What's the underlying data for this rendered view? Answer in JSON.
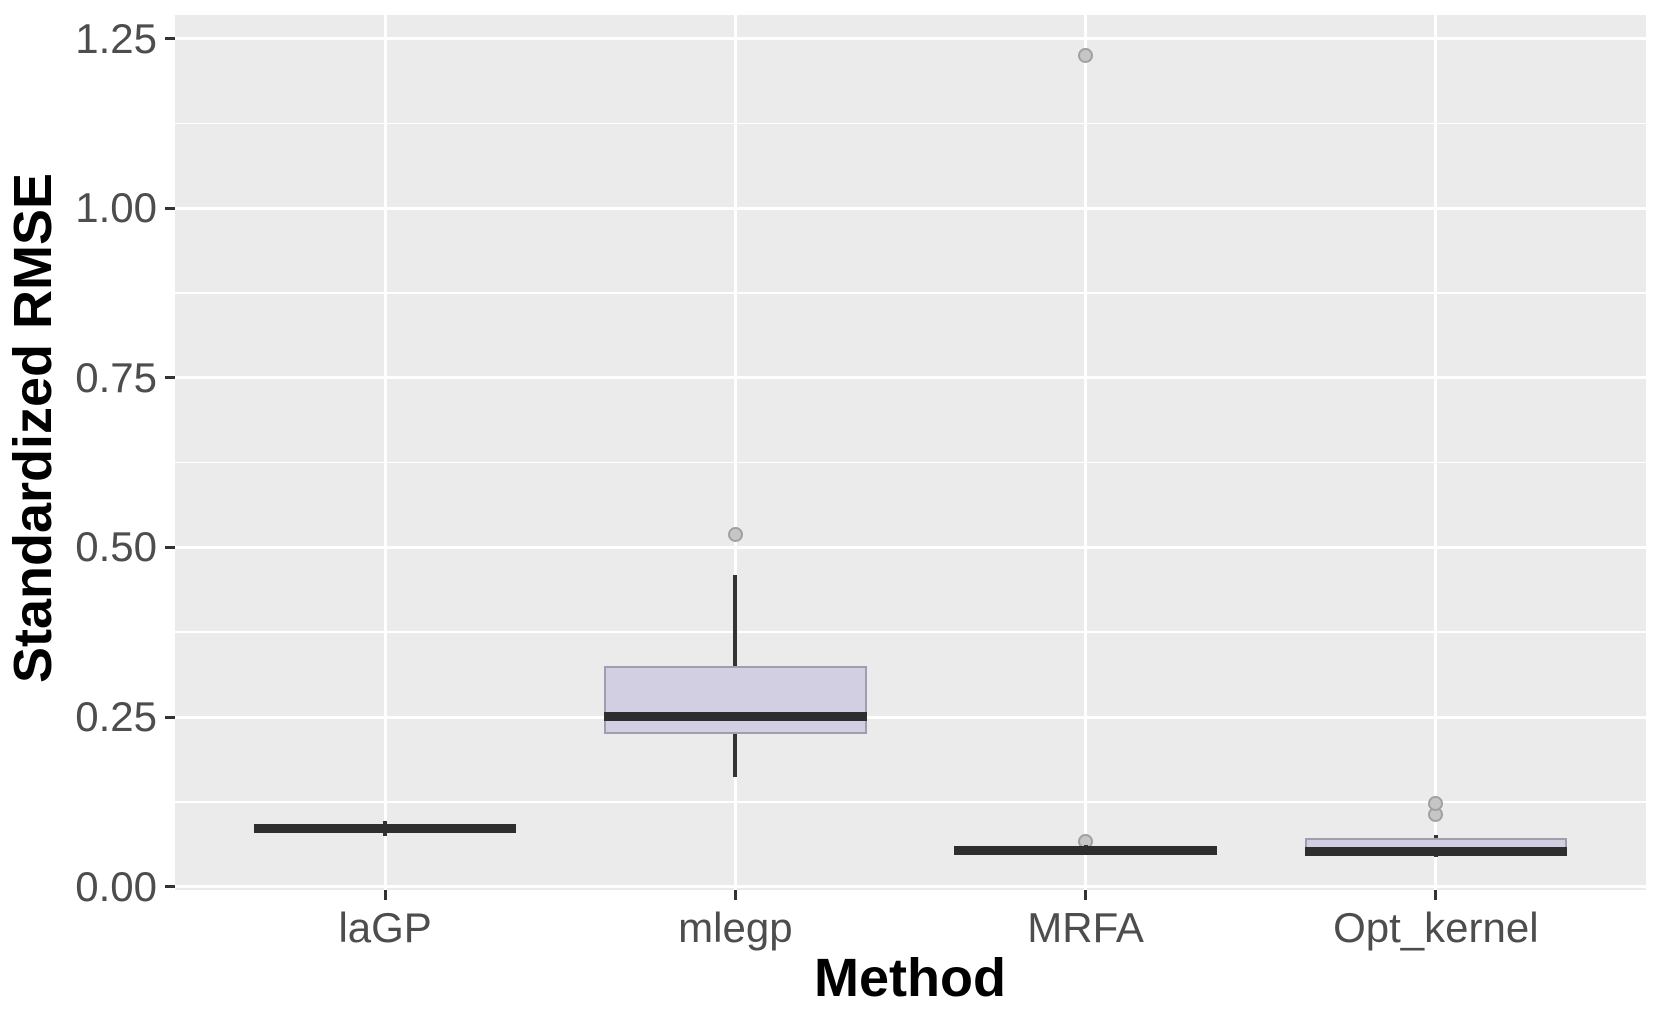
{
  "chart_data": {
    "type": "boxplot",
    "title": "",
    "xlabel": "Method",
    "ylabel": "Standardized RMSE",
    "categories": [
      "laGP",
      "mlegp",
      "MRFA",
      "Opt_kernel"
    ],
    "y_ticks": [
      0.0,
      0.25,
      0.5,
      0.75,
      1.0,
      1.25
    ],
    "y_tick_labels": [
      "0.00",
      "0.25",
      "0.50",
      "0.75",
      "1.00",
      "1.25"
    ],
    "ylim": [
      -0.005,
      1.285
    ],
    "legend": "none",
    "grid": "white major and minor horizontal lines, white major vertical lines on gray panel",
    "series": [
      {
        "category": "laGP",
        "whisker_low": 0.074,
        "q1": 0.079,
        "median": 0.086,
        "q3": 0.093,
        "whisker_high": 0.097,
        "outliers": []
      },
      {
        "category": "mlegp",
        "whisker_low": 0.162,
        "q1": 0.225,
        "median": 0.251,
        "q3": 0.325,
        "whisker_high": 0.46,
        "outliers": [
          0.519
        ]
      },
      {
        "category": "MRFA",
        "whisker_low": 0.047,
        "q1": 0.049,
        "median": 0.053,
        "q3": 0.058,
        "whisker_high": 0.062,
        "outliers": [
          0.066,
          1.225
        ]
      },
      {
        "category": "Opt_kernel",
        "whisker_low": 0.044,
        "q1": 0.047,
        "median": 0.052,
        "q3": 0.072,
        "whisker_high": 0.076,
        "outliers": [
          0.106,
          0.122
        ]
      }
    ],
    "colors": {
      "panel_background": "#EBEBEB",
      "figure_background": "#FFFFFF",
      "gridline": "#FFFFFF",
      "box_fill": "#D3CFE3",
      "box_border": "#A09EAD",
      "median_line": "#2E2E2E",
      "whisker_line": "#333333",
      "outlier_fill": "#C6C6C6",
      "outlier_stroke": "#A0A0A0",
      "tick_label_text": "#4D4D4D",
      "axis_title_text": "#000000",
      "tick_mark": "#333333"
    }
  }
}
